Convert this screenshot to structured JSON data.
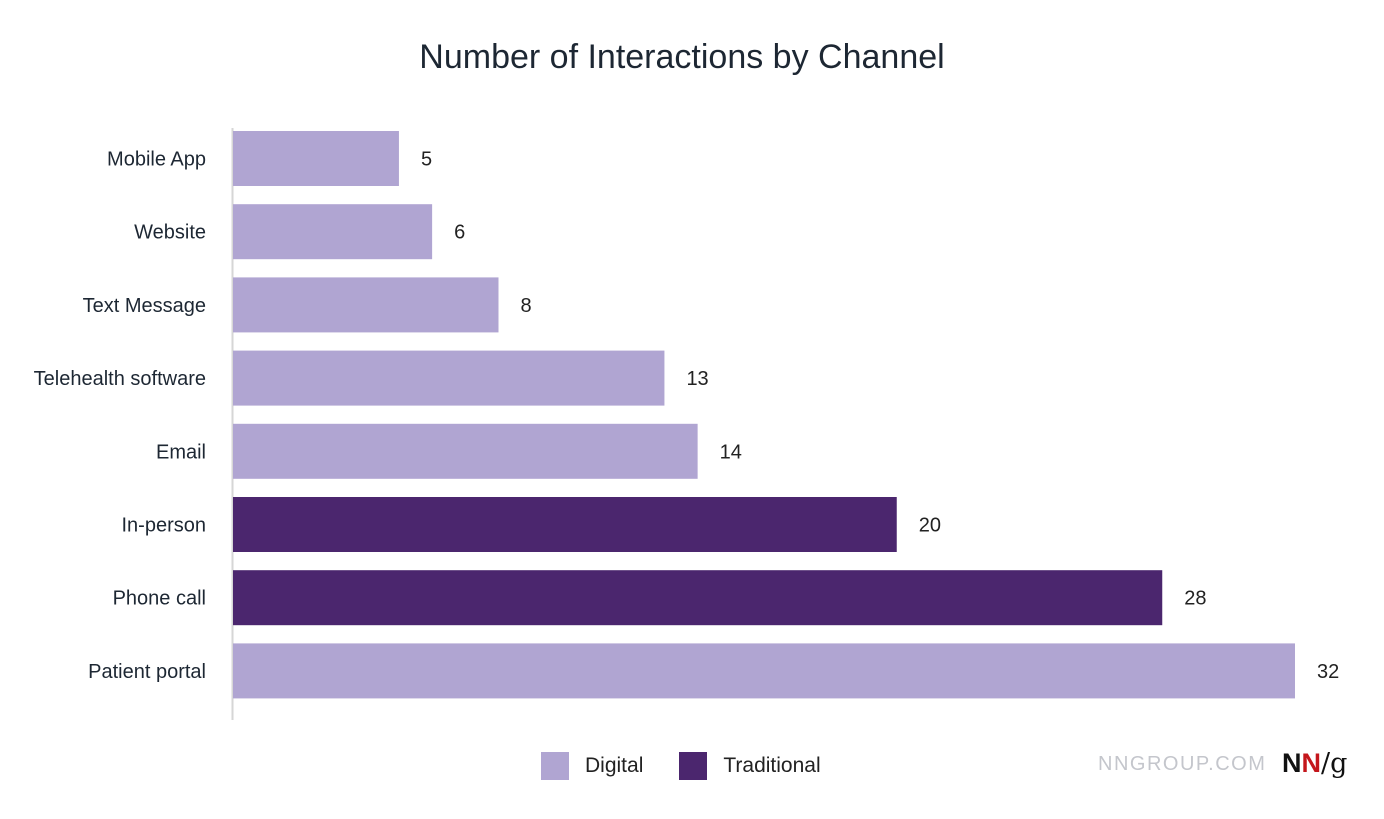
{
  "chart_data": {
    "type": "bar",
    "orientation": "horizontal",
    "title": "Number of Interactions by Channel",
    "xlabel": "",
    "ylabel": "",
    "xlim": [
      0,
      32
    ],
    "grid": false,
    "legend_placement": "bottom-center",
    "categories": [
      "Mobile App",
      "Website",
      "Text Message",
      "Telehealth software",
      "Email",
      "In-person",
      "Phone call",
      "Patient portal"
    ],
    "values": [
      5,
      6,
      8,
      13,
      14,
      20,
      28,
      32
    ],
    "groups": [
      "Digital",
      "Digital",
      "Digital",
      "Digital",
      "Digital",
      "Traditional",
      "Traditional",
      "Digital"
    ],
    "legend": [
      {
        "name": "Digital",
        "color": "#B0A5D2"
      },
      {
        "name": "Traditional",
        "color": "#4B266E"
      }
    ]
  },
  "footer": {
    "brand_text": "NNGROUP.COM",
    "logo_text": "NN/g"
  }
}
